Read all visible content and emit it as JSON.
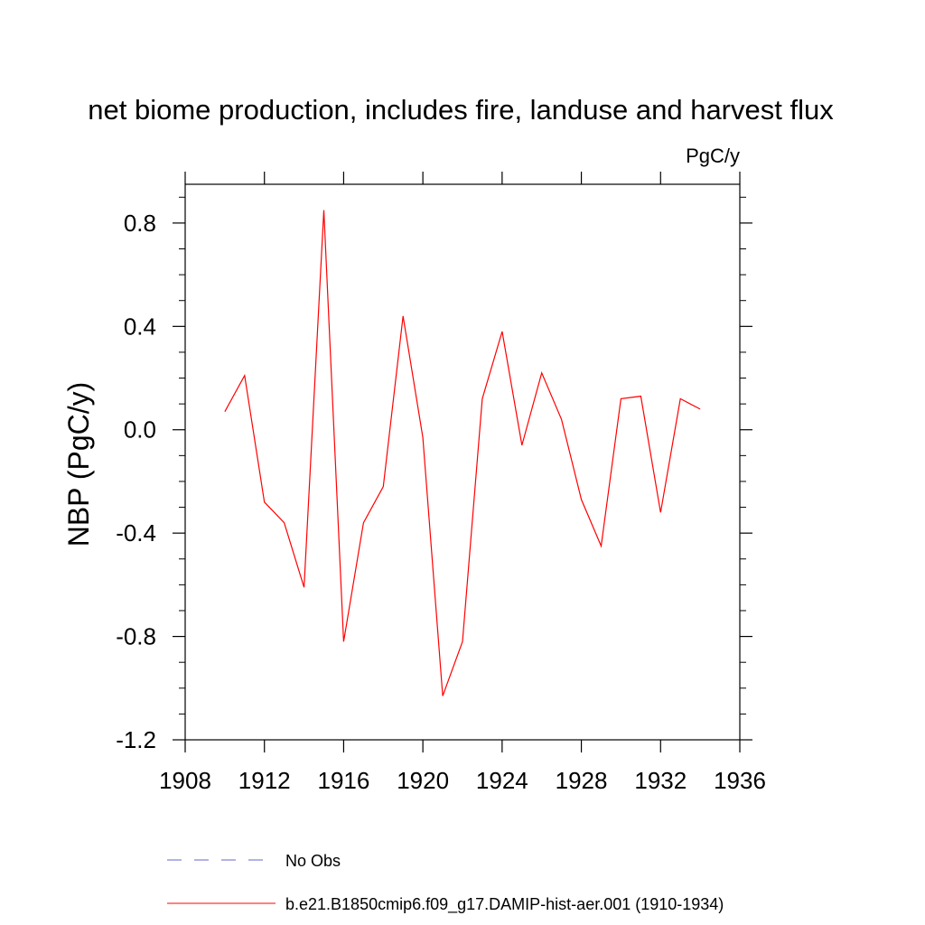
{
  "chart_data": {
    "type": "line",
    "title": "net biome production, includes fire, landuse and harvest flux",
    "units_label": "PgC/y",
    "ylabel": "NBP  (PgC/y)",
    "xlabel": "",
    "xlim": [
      1908,
      1936
    ],
    "ylim": [
      -1.2,
      0.95
    ],
    "x_ticks": [
      1908,
      1912,
      1916,
      1920,
      1924,
      1928,
      1932,
      1936
    ],
    "x_tick_labels": [
      "1908",
      "1912",
      "1916",
      "1920",
      "1924",
      "1928",
      "1932",
      "1936"
    ],
    "y_ticks": [
      -1.2,
      -0.8,
      -0.4,
      0.0,
      0.4,
      0.8
    ],
    "y_tick_labels": [
      "-1.2",
      "-0.8",
      "-0.4",
      "0.0",
      "0.4",
      "0.8"
    ],
    "grid": false,
    "legend_position": "bottom",
    "series": [
      {
        "name": "b.e21.B1850cmip6.f09_g17.DAMIP-hist-aer.001 (1910-1934)",
        "color": "#ff0000",
        "style": "solid",
        "x": [
          1910,
          1911,
          1912,
          1913,
          1914,
          1915,
          1916,
          1917,
          1918,
          1919,
          1920,
          1921,
          1922,
          1923,
          1924,
          1925,
          1926,
          1927,
          1928,
          1929,
          1930,
          1931,
          1932,
          1933,
          1934
        ],
        "values": [
          0.07,
          0.21,
          -0.28,
          -0.36,
          -0.61,
          0.85,
          -0.82,
          -0.36,
          -0.22,
          0.44,
          -0.03,
          -1.03,
          -0.82,
          0.12,
          0.38,
          -0.06,
          0.22,
          0.04,
          -0.27,
          -0.45,
          0.12,
          0.13,
          -0.32,
          0.12,
          0.08
        ]
      }
    ],
    "legend": [
      {
        "label": "No Obs",
        "color": "#6666cc",
        "style": "dashed"
      },
      {
        "label": "b.e21.B1850cmip6.f09_g17.DAMIP-hist-aer.001 (1910-1934)",
        "color": "#ff0000",
        "style": "solid"
      }
    ]
  }
}
